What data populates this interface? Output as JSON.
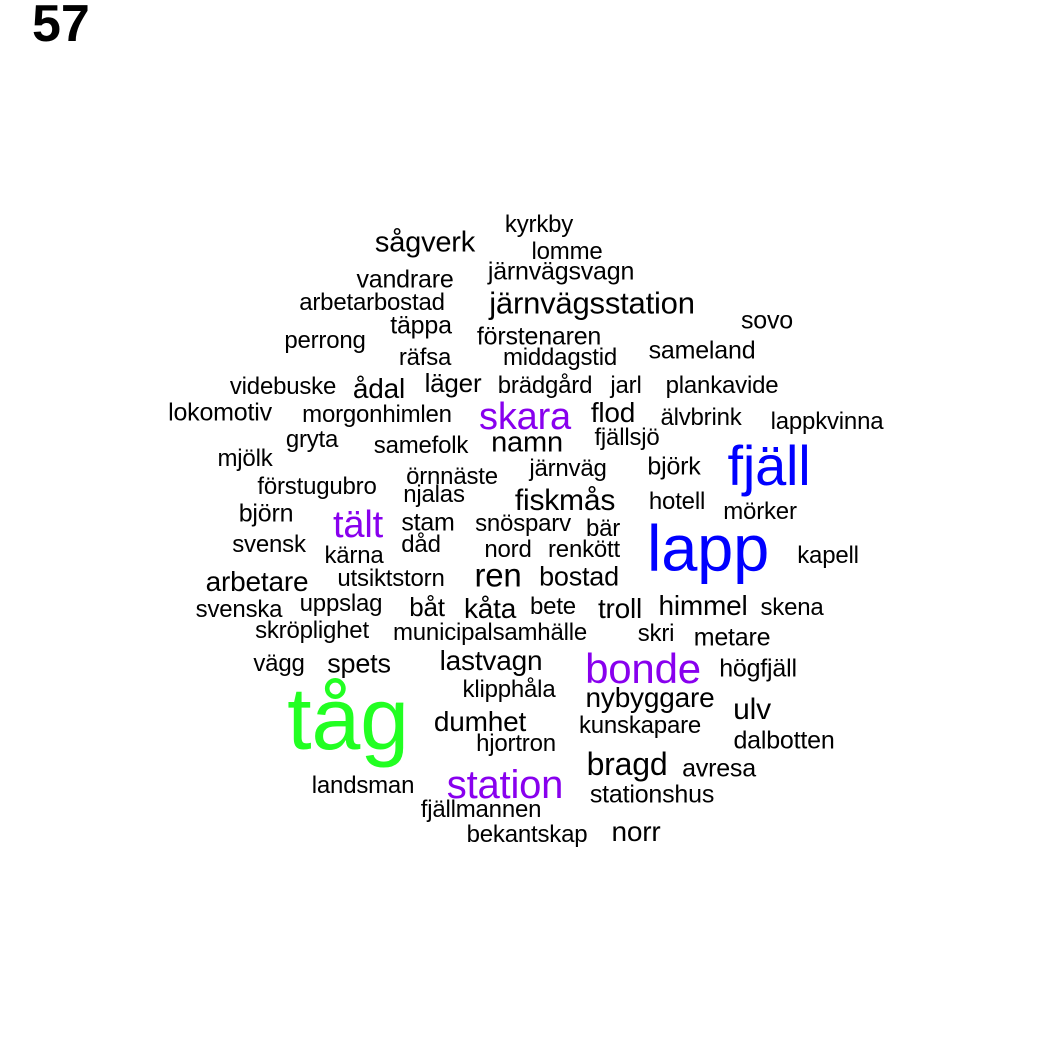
{
  "page_number": "57",
  "colors": {
    "black": "#000000",
    "blue": "#0000ff",
    "purple": "#8800ee",
    "green": "#22ff22"
  },
  "words": [
    {
      "text": "kyrkby",
      "color": "black"
    },
    {
      "text": "sågverk",
      "color": "black"
    },
    {
      "text": "lomme",
      "color": "black"
    },
    {
      "text": "vandrare",
      "color": "black"
    },
    {
      "text": "järnvägsvagn",
      "color": "black"
    },
    {
      "text": "arbetarbostad",
      "color": "black"
    },
    {
      "text": "järnvägsstation",
      "color": "black"
    },
    {
      "text": "sovo",
      "color": "black"
    },
    {
      "text": "täppa",
      "color": "black"
    },
    {
      "text": "förstenaren",
      "color": "black"
    },
    {
      "text": "perrong",
      "color": "black"
    },
    {
      "text": "sameland",
      "color": "black"
    },
    {
      "text": "räfsa",
      "color": "black"
    },
    {
      "text": "middagstid",
      "color": "black"
    },
    {
      "text": "videbuske",
      "color": "black"
    },
    {
      "text": "ådal",
      "color": "black"
    },
    {
      "text": "läger",
      "color": "black"
    },
    {
      "text": "brädgård",
      "color": "black"
    },
    {
      "text": "jarl",
      "color": "black"
    },
    {
      "text": "plankavide",
      "color": "black"
    },
    {
      "text": "lokomotiv",
      "color": "black"
    },
    {
      "text": "morgonhimlen",
      "color": "black"
    },
    {
      "text": "skara",
      "color": "purple"
    },
    {
      "text": "flod",
      "color": "black"
    },
    {
      "text": "älvbrink",
      "color": "black"
    },
    {
      "text": "lappkvinna",
      "color": "black"
    },
    {
      "text": "gryta",
      "color": "black"
    },
    {
      "text": "samefolk",
      "color": "black"
    },
    {
      "text": "namn",
      "color": "black"
    },
    {
      "text": "fjällsjö",
      "color": "black"
    },
    {
      "text": "fjäll",
      "color": "blue"
    },
    {
      "text": "mjölk",
      "color": "black"
    },
    {
      "text": "järnväg",
      "color": "black"
    },
    {
      "text": "björk",
      "color": "black"
    },
    {
      "text": "örnnäste",
      "color": "black"
    },
    {
      "text": "förstugubro",
      "color": "black"
    },
    {
      "text": "njalas",
      "color": "black"
    },
    {
      "text": "fiskmås",
      "color": "black"
    },
    {
      "text": "hotell",
      "color": "black"
    },
    {
      "text": "björn",
      "color": "black"
    },
    {
      "text": "tält",
      "color": "purple"
    },
    {
      "text": "stam",
      "color": "black"
    },
    {
      "text": "snösparv",
      "color": "black"
    },
    {
      "text": "bär",
      "color": "black"
    },
    {
      "text": "mörker",
      "color": "black"
    },
    {
      "text": "svensk",
      "color": "black"
    },
    {
      "text": "dåd",
      "color": "black"
    },
    {
      "text": "lapp",
      "color": "blue"
    },
    {
      "text": "kärna",
      "color": "black"
    },
    {
      "text": "nord",
      "color": "black"
    },
    {
      "text": "renkött",
      "color": "black"
    },
    {
      "text": "kapell",
      "color": "black"
    },
    {
      "text": "ren",
      "color": "black"
    },
    {
      "text": "arbetare",
      "color": "black"
    },
    {
      "text": "utsiktstorn",
      "color": "black"
    },
    {
      "text": "bostad",
      "color": "black"
    },
    {
      "text": "svenska",
      "color": "black"
    },
    {
      "text": "uppslag",
      "color": "black"
    },
    {
      "text": "båt",
      "color": "black"
    },
    {
      "text": "kåta",
      "color": "black"
    },
    {
      "text": "bete",
      "color": "black"
    },
    {
      "text": "troll",
      "color": "black"
    },
    {
      "text": "himmel",
      "color": "black"
    },
    {
      "text": "skena",
      "color": "black"
    },
    {
      "text": "skröplighet",
      "color": "black"
    },
    {
      "text": "municipalsamhälle",
      "color": "black"
    },
    {
      "text": "skri",
      "color": "black"
    },
    {
      "text": "metare",
      "color": "black"
    },
    {
      "text": "vägg",
      "color": "black"
    },
    {
      "text": "spets",
      "color": "black"
    },
    {
      "text": "lastvagn",
      "color": "black"
    },
    {
      "text": "bonde",
      "color": "purple"
    },
    {
      "text": "högfjäll",
      "color": "black"
    },
    {
      "text": "klipphåla",
      "color": "black"
    },
    {
      "text": "nybyggare",
      "color": "black"
    },
    {
      "text": "tåg",
      "color": "green"
    },
    {
      "text": "ulv",
      "color": "black"
    },
    {
      "text": "dumhet",
      "color": "black"
    },
    {
      "text": "kunskapare",
      "color": "black"
    },
    {
      "text": "hjortron",
      "color": "black"
    },
    {
      "text": "dalbotten",
      "color": "black"
    },
    {
      "text": "bragd",
      "color": "black"
    },
    {
      "text": "avresa",
      "color": "black"
    },
    {
      "text": "landsman",
      "color": "black"
    },
    {
      "text": "station",
      "color": "purple"
    },
    {
      "text": "stationshus",
      "color": "black"
    },
    {
      "text": "fjällmannen",
      "color": "black"
    },
    {
      "text": "bekantskap",
      "color": "black"
    },
    {
      "text": "norr",
      "color": "black"
    }
  ]
}
